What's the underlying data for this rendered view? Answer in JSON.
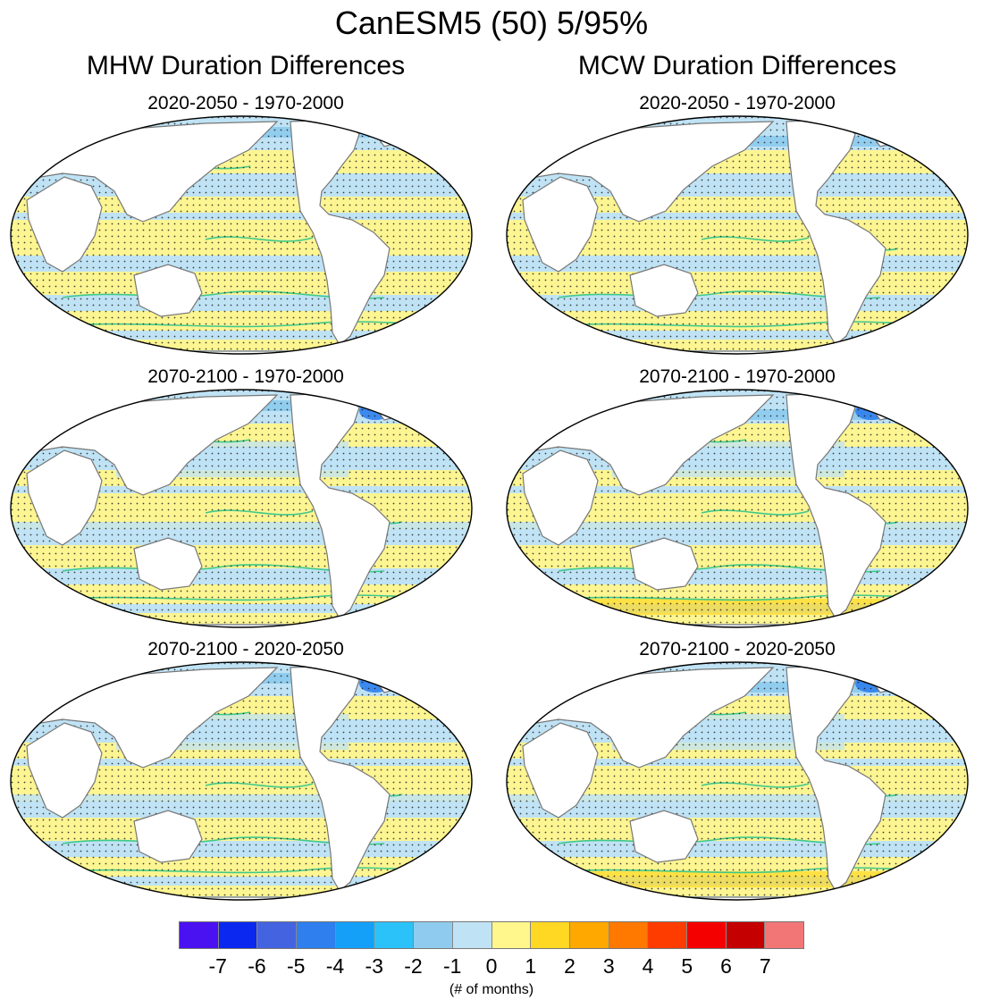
{
  "figure": {
    "title": "CanESM5 (50) 5/95%",
    "column_titles": [
      "MHW Duration Differences",
      "MCW Duration Differences"
    ],
    "panels": [
      {
        "column": "MHW",
        "title": "2020-2050 - 1970-2000"
      },
      {
        "column": "MCW",
        "title": "2020-2050 - 1970-2000"
      },
      {
        "column": "MHW",
        "title": "2070-2100 - 1970-2000"
      },
      {
        "column": "MCW",
        "title": "2070-2100 - 1970-2000"
      },
      {
        "column": "MHW",
        "title": "2070-2100 - 2020-2050"
      },
      {
        "column": "MCW",
        "title": "2070-2100 - 2020-2050"
      }
    ]
  },
  "colorbar": {
    "colors": [
      "#4a12f0",
      "#0a28f0",
      "#4463e0",
      "#2f7fee",
      "#14a0f8",
      "#2ac2f8",
      "#8ecbee",
      "#bfe3f5",
      "#fff68c",
      "#ffd824",
      "#ffa800",
      "#ff7800",
      "#ff3c00",
      "#f40000",
      "#c40000",
      "#f27676"
    ],
    "labels": [
      "-7",
      "-6",
      "-5",
      "-4",
      "-3",
      "-2",
      "-1",
      "0",
      "1",
      "2",
      "3",
      "4",
      "5",
      "6",
      "7"
    ],
    "units": "(# of months)"
  }
}
